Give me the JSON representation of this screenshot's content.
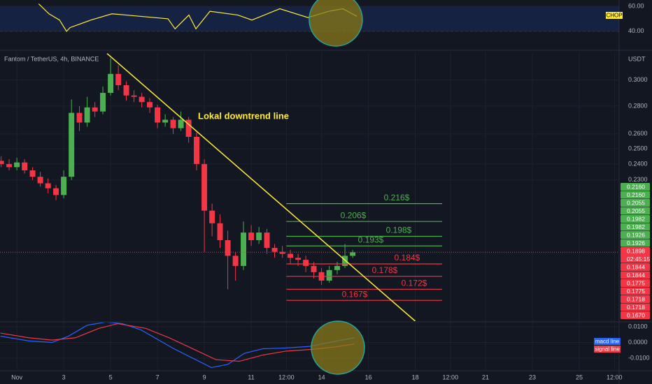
{
  "chart_data": [
    {
      "type": "candlestick",
      "title": "Fantom / TetherUS, 4h, BINANCE",
      "y_unit": "USDT",
      "log": true,
      "up_color": "#4caf50",
      "down_color": "#f23645",
      "x": [
        0.33,
        0.67,
        1.0,
        1.33,
        1.67,
        2.0,
        2.33,
        2.67,
        3.0,
        3.33,
        3.67,
        4.0,
        4.33,
        4.67,
        5.0,
        5.33,
        5.67,
        6.0,
        6.33,
        6.67,
        7.0,
        7.33,
        7.67,
        8.0,
        8.33,
        8.67,
        9.0,
        9.33,
        9.67,
        10.0,
        10.33,
        10.67,
        11.0,
        11.33,
        11.67,
        12.0,
        12.33,
        12.67,
        13.0,
        13.33,
        13.67,
        14.0,
        14.33,
        14.67,
        15.0,
        15.33
      ],
      "open": [
        0.242,
        0.24,
        0.238,
        0.241,
        0.236,
        0.232,
        0.228,
        0.225,
        0.221,
        0.232,
        0.275,
        0.268,
        0.279,
        0.276,
        0.29,
        0.305,
        0.296,
        0.288,
        0.287,
        0.283,
        0.279,
        0.268,
        0.27,
        0.264,
        0.27,
        0.258,
        0.24,
        0.212,
        0.205,
        0.196,
        0.188,
        0.183,
        0.2,
        0.196,
        0.2,
        0.192,
        0.19,
        0.189,
        0.187,
        0.186,
        0.183,
        0.18,
        0.176,
        0.181,
        0.183,
        0.188
      ],
      "high": [
        0.245,
        0.243,
        0.244,
        0.243,
        0.238,
        0.235,
        0.231,
        0.227,
        0.236,
        0.285,
        0.28,
        0.287,
        0.283,
        0.295,
        0.318,
        0.312,
        0.299,
        0.292,
        0.29,
        0.286,
        0.281,
        0.274,
        0.272,
        0.276,
        0.272,
        0.261,
        0.243,
        0.216,
        0.21,
        0.201,
        0.19,
        0.206,
        0.204,
        0.203,
        0.202,
        0.194,
        0.193,
        0.191,
        0.189,
        0.188,
        0.185,
        0.182,
        0.183,
        0.185,
        0.194,
        0.191
      ],
      "low": [
        0.238,
        0.236,
        0.236,
        0.234,
        0.23,
        0.226,
        0.222,
        0.218,
        0.219,
        0.23,
        0.262,
        0.265,
        0.272,
        0.274,
        0.288,
        0.292,
        0.284,
        0.283,
        0.279,
        0.275,
        0.264,
        0.265,
        0.26,
        0.262,
        0.254,
        0.236,
        0.19,
        0.198,
        0.192,
        0.172,
        0.176,
        0.181,
        0.193,
        0.194,
        0.189,
        0.187,
        0.187,
        0.184,
        0.183,
        0.18,
        0.177,
        0.174,
        0.175,
        0.179,
        0.182,
        0.187
      ],
      "close": [
        0.24,
        0.238,
        0.241,
        0.236,
        0.232,
        0.228,
        0.225,
        0.221,
        0.232,
        0.275,
        0.268,
        0.279,
        0.276,
        0.29,
        0.305,
        0.296,
        0.288,
        0.287,
        0.283,
        0.279,
        0.268,
        0.27,
        0.264,
        0.27,
        0.258,
        0.24,
        0.212,
        0.205,
        0.196,
        0.188,
        0.183,
        0.2,
        0.196,
        0.2,
        0.192,
        0.19,
        0.189,
        0.187,
        0.186,
        0.183,
        0.18,
        0.176,
        0.181,
        0.183,
        0.188,
        0.1898
      ],
      "xlim": [
        0.28,
        26.7
      ],
      "xticks": [
        {
          "value": 1,
          "label": "Nov"
        },
        3,
        5,
        7,
        9,
        11,
        {
          "value": 12.5,
          "label": "12:00"
        },
        14,
        16,
        18,
        {
          "value": 19.5,
          "label": "12:00"
        },
        21,
        23,
        25,
        {
          "value": 26.5,
          "label": "12:00"
        }
      ],
      "ylim": [
        0.158,
        0.323
      ],
      "yticks": [
        {
          "value": 0.23,
          "label": "0.2300"
        },
        {
          "value": 0.24,
          "label": "0.2400"
        },
        {
          "value": 0.25,
          "label": "0.2500"
        },
        {
          "value": 0.26,
          "label": "0.2600"
        },
        {
          "value": 0.28,
          "label": "0.2800"
        },
        {
          "value": 0.3,
          "label": "0.3000"
        }
      ],
      "trendline": {
        "label": "Lokal downtrend line",
        "color": "#ffeb3b",
        "x": [
          4.85,
          18.0
        ],
        "y": [
          0.322,
          0.158
        ]
      },
      "levels_x": [
        12.5,
        19.15
      ],
      "levels": [
        {
          "value": 0.216,
          "label": "0.216$",
          "color": "#4caf50"
        },
        {
          "value": 0.206,
          "label": "0.206$",
          "color": "#4caf50"
        },
        {
          "value": 0.198,
          "label": "0.198$",
          "color": "#4caf50"
        },
        {
          "value": 0.193,
          "label": "0.193$",
          "color": "#4caf50"
        },
        {
          "value": 0.184,
          "label": "0.184$",
          "color": "#f23645"
        },
        {
          "value": 0.178,
          "label": "0.178$",
          "color": "#f23645"
        },
        {
          "value": 0.172,
          "label": "0.172$",
          "color": "#f23645"
        },
        {
          "value": 0.167,
          "label": "0.167$",
          "color": "#f23645"
        }
      ],
      "current_price": {
        "value": 0.1898,
        "label": "0.1898",
        "countdown": "02:45:15",
        "color": "#f23645"
      },
      "price_tags": [
        {
          "value": 0.216,
          "label": "0.2160",
          "color": "#4caf50"
        },
        {
          "value": 0.216,
          "label": "0.2160",
          "color": "#4caf50"
        },
        {
          "value": 0.2055,
          "label": "0.2055",
          "color": "#4caf50"
        },
        {
          "value": 0.2055,
          "label": "0.2055",
          "color": "#4caf50"
        },
        {
          "value": 0.1982,
          "label": "0.1982",
          "color": "#4caf50"
        },
        {
          "value": 0.1982,
          "label": "0.1982",
          "color": "#4caf50"
        },
        {
          "value": 0.1926,
          "label": "0.1926",
          "color": "#4caf50"
        },
        {
          "value": 0.1926,
          "label": "0.1926",
          "color": "#4caf50"
        },
        {
          "value": 0.1844,
          "label": "0.1844",
          "color": "#f23645"
        },
        {
          "value": 0.1844,
          "label": "0.1844",
          "color": "#f23645"
        },
        {
          "value": 0.1775,
          "label": "0.1775",
          "color": "#f23645"
        },
        {
          "value": 0.1775,
          "label": "0.1775",
          "color": "#f23645"
        },
        {
          "value": 0.1718,
          "label": "0.1718",
          "color": "#f23645"
        },
        {
          "value": 0.1718,
          "label": "0.1718",
          "color": "#f23645"
        },
        {
          "value": 0.167,
          "label": "0.1670",
          "color": "#f23645"
        }
      ]
    },
    {
      "type": "line",
      "label": "CHOP",
      "color": "#ffeb3b",
      "x": [
        1.93,
        2.37,
        2.82,
        3.12,
        3.27,
        4.16,
        5.06,
        6.25,
        7.45,
        7.75,
        8.34,
        8.64,
        9.24,
        10.43,
        11.03,
        12.22,
        13.42,
        14.31,
        14.91,
        15.51
      ],
      "values": [
        62,
        54,
        49,
        40,
        43,
        49,
        54,
        52,
        50,
        42,
        53,
        42,
        56,
        53,
        49,
        58,
        51,
        56,
        58,
        52
      ],
      "ylim": [
        26,
        65
      ],
      "band": [
        40,
        60
      ],
      "yticks": [
        {
          "value": 60,
          "label": "60.00"
        },
        {
          "value": 40,
          "label": "40.00"
        }
      ]
    },
    {
      "type": "line",
      "series": [
        {
          "name": "macd line",
          "color": "#2962ff",
          "x": [
            0.3,
            1.5,
            2.5,
            3.2,
            4.0,
            4.8,
            5.5,
            6.3,
            7.0,
            7.7,
            8.5,
            9.3,
            10.0,
            10.7,
            11.5,
            12.5,
            13.5,
            14.5,
            15.4
          ],
          "values": [
            0.004,
            0.001,
            0.0,
            0.004,
            0.011,
            0.013,
            0.012,
            0.008,
            0.002,
            -0.004,
            -0.01,
            -0.016,
            -0.014,
            -0.007,
            -0.004,
            -0.0035,
            -0.0025,
            0.0005,
            0.003
          ]
        },
        {
          "name": "signal line",
          "color": "#f23645",
          "x": [
            0.3,
            1.5,
            2.5,
            3.5,
            4.5,
            5.3,
            6.5,
            7.5,
            8.5,
            9.5,
            10.5,
            11.5,
            12.5,
            13.5,
            14.5,
            15.4
          ],
          "values": [
            0.006,
            0.003,
            0.0015,
            0.003,
            0.009,
            0.012,
            0.009,
            0.003,
            -0.004,
            -0.011,
            -0.012,
            -0.008,
            -0.0055,
            -0.0045,
            -0.003,
            -0.001
          ]
        }
      ],
      "ylim": [
        -0.0176,
        0.0127
      ],
      "yticks": [
        {
          "value": 0.01,
          "label": "0.0100"
        },
        {
          "value": 0,
          "label": "0.0000"
        },
        {
          "value": -0.01,
          "label": "-0.0100"
        }
      ]
    }
  ]
}
